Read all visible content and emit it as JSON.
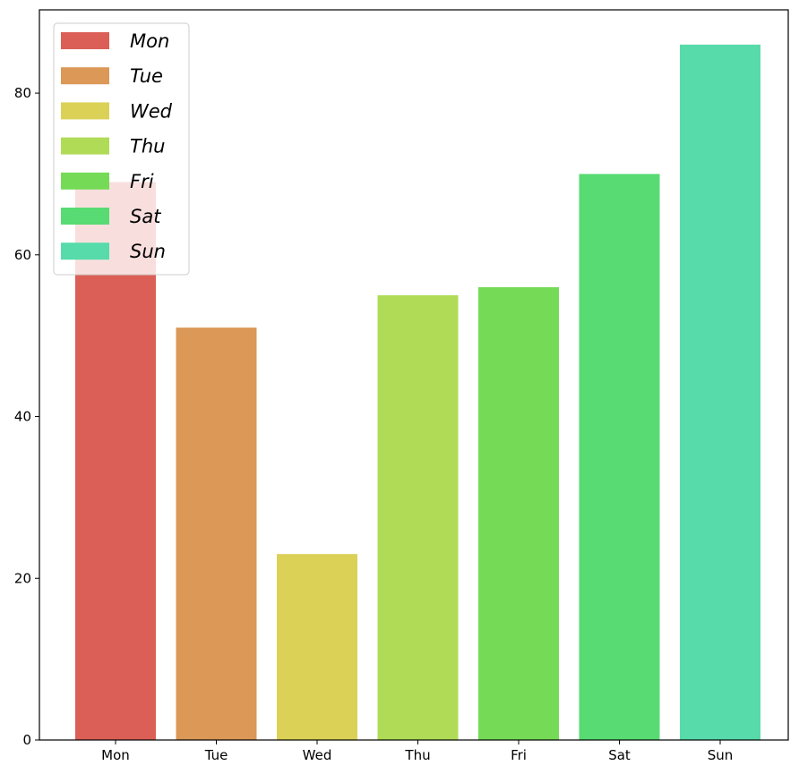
{
  "chart_data": {
    "type": "bar",
    "categories": [
      "Mon",
      "Tue",
      "Wed",
      "Thu",
      "Fri",
      "Sat",
      "Sun"
    ],
    "values": [
      69,
      51,
      23,
      55,
      56,
      70,
      86
    ],
    "colors": [
      "#db5f57",
      "#db9857",
      "#dbd157",
      "#b0db57",
      "#75db57",
      "#57db72",
      "#57dbab"
    ],
    "legend": [
      "Mon",
      "Tue",
      "Wed",
      "Thu",
      "Fri",
      "Sat",
      "Sun"
    ],
    "legend_position": "upper-left",
    "yticks": [
      0,
      20,
      40,
      60,
      80
    ],
    "ylim": [
      0,
      90.3
    ],
    "grid": false,
    "title": "",
    "xlabel": "",
    "ylabel": ""
  }
}
